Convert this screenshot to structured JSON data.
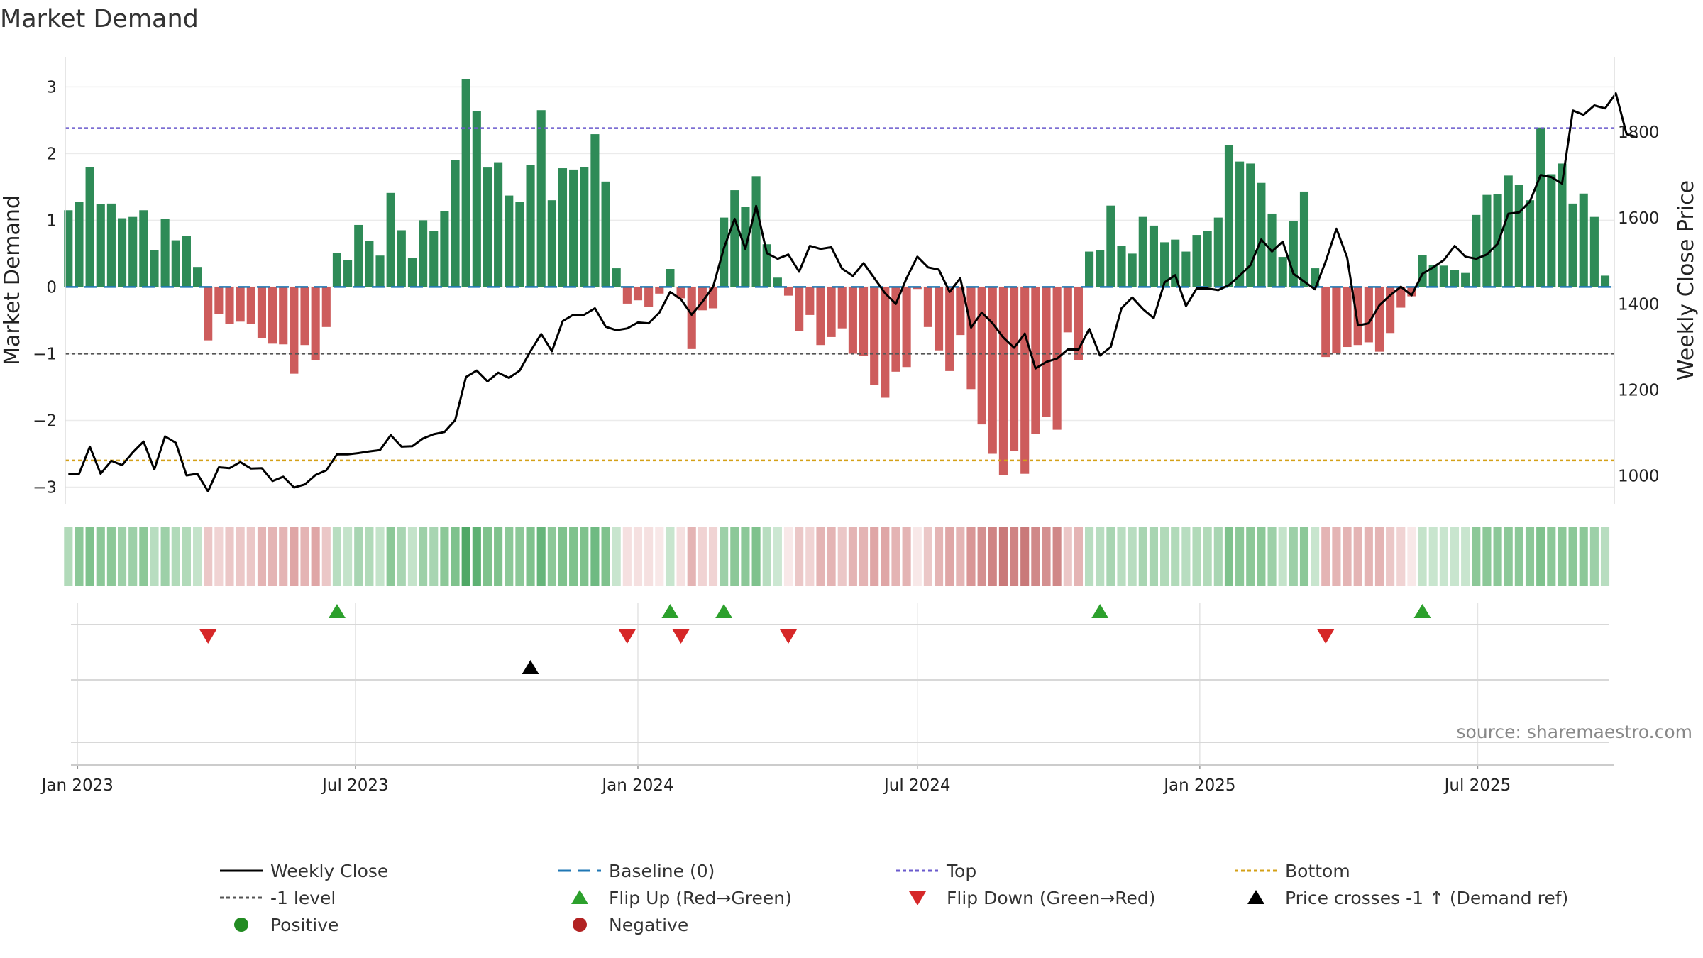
{
  "chart_data": {
    "type": "bar",
    "title": "Market Demand",
    "ylabel": "Market Demand",
    "y2label": "Weekly Close Price",
    "ylim": [
      -3.25,
      3.45
    ],
    "y2lim": [
      935,
      1975
    ],
    "yticks": [
      -3,
      -2,
      -1,
      0,
      1,
      2,
      3
    ],
    "y2ticks": [
      1000,
      1200,
      1400,
      1600,
      1800
    ],
    "xlim": [
      "2022-12-24",
      "2025-09-28"
    ],
    "xticks": [
      {
        "date": "2023-01-01",
        "label": "Jan 2023"
      },
      {
        "date": "2023-07-01",
        "label": "Jul 2023"
      },
      {
        "date": "2024-01-01",
        "label": "Jan 2024"
      },
      {
        "date": "2024-07-01",
        "label": "Jul 2024"
      },
      {
        "date": "2025-01-01",
        "label": "Jan 2025"
      },
      {
        "date": "2025-07-01",
        "label": "Jul 2025"
      }
    ],
    "start_date": "2022-12-26",
    "weeks": 144,
    "levels": {
      "top": 2.38,
      "bottom": -2.6,
      "minus_one": -1,
      "baseline": 0
    },
    "demand": [
      1.15,
      1.27,
      1.8,
      1.24,
      1.25,
      1.03,
      1.05,
      1.15,
      0.55,
      1.02,
      0.7,
      0.76,
      0.3,
      -0.8,
      -0.4,
      -0.55,
      -0.52,
      -0.55,
      -0.77,
      -0.85,
      -0.86,
      -1.3,
      -0.87,
      -1.1,
      -0.6,
      0.51,
      0.4,
      0.93,
      0.69,
      0.47,
      1.41,
      0.85,
      0.44,
      1.0,
      0.84,
      1.14,
      1.9,
      3.12,
      2.64,
      1.79,
      1.87,
      1.37,
      1.28,
      1.83,
      2.65,
      1.3,
      1.78,
      1.76,
      1.8,
      2.29,
      1.58,
      0.28,
      -0.25,
      -0.2,
      -0.3,
      -0.1,
      0.27,
      -0.17,
      -0.93,
      -0.35,
      -0.32,
      1.04,
      1.45,
      1.2,
      1.66,
      0.64,
      0.14,
      -0.13,
      -0.66,
      -0.42,
      -0.87,
      -0.75,
      -0.62,
      -1.0,
      -1.03,
      -1.47,
      -1.66,
      -1.27,
      -1.2,
      -0.03,
      -0.6,
      -0.95,
      -1.26,
      -0.72,
      -1.53,
      -2.06,
      -2.5,
      -2.82,
      -2.46,
      -2.8,
      -2.2,
      -1.95,
      -2.14,
      -0.68,
      -1.1,
      0.53,
      0.55,
      1.22,
      0.62,
      0.5,
      1.05,
      0.92,
      0.67,
      0.71,
      0.53,
      0.78,
      0.84,
      1.04,
      2.13,
      1.88,
      1.85,
      1.56,
      1.1,
      0.45,
      0.99,
      1.43,
      0.28,
      -1.05,
      -0.99,
      -0.9,
      -0.87,
      -0.83,
      -0.97,
      -0.69,
      -0.31,
      -0.14,
      0.48,
      0.33,
      0.32,
      0.25,
      0.21,
      1.08,
      1.38,
      1.39,
      1.67,
      1.53,
      1.3,
      2.39,
      1.69,
      1.85,
      1.25,
      1.4,
      1.05,
      0.17
    ],
    "close": [
      1005,
      1005,
      1068,
      1005,
      1035,
      1025,
      1055,
      1080,
      1015,
      1092,
      1077,
      1001,
      1005,
      964,
      1020,
      1018,
      1032,
      1017,
      1018,
      988,
      998,
      973,
      980,
      1002,
      1013,
      1050,
      1050,
      1053,
      1057,
      1060,
      1095,
      1068,
      1069,
      1087,
      1097,
      1102,
      1130,
      1230,
      1245,
      1220,
      1240,
      1228,
      1245,
      1290,
      1330,
      1290,
      1360,
      1375,
      1375,
      1390,
      1347,
      1339,
      1343,
      1357,
      1355,
      1380,
      1428,
      1411,
      1375,
      1405,
      1440,
      1530,
      1598,
      1528,
      1628,
      1518,
      1505,
      1515,
      1475,
      1535,
      1528,
      1532,
      1482,
      1465,
      1495,
      1460,
      1425,
      1400,
      1460,
      1510,
      1485,
      1480,
      1428,
      1460,
      1345,
      1380,
      1355,
      1322,
      1298,
      1331,
      1250,
      1265,
      1273,
      1294,
      1294,
      1342,
      1280,
      1300,
      1390,
      1415,
      1388,
      1367,
      1450,
      1467,
      1395,
      1436,
      1436,
      1432,
      1444,
      1466,
      1490,
      1550,
      1522,
      1545,
      1470,
      1452,
      1434,
      1499,
      1575,
      1508,
      1350,
      1355,
      1397,
      1420,
      1440,
      1420,
      1470,
      1485,
      1502,
      1535,
      1510,
      1505,
      1515,
      1540,
      1610,
      1613,
      1638,
      1700,
      1695,
      1680,
      1850,
      1840,
      1862,
      1855,
      1890,
      1795,
      1788
    ],
    "demand_strip_colors": [
      "#b1dab9",
      "#8cc898",
      "#7fc28d",
      "#8cc898",
      "#8cc898",
      "#9dd0a8",
      "#9dd0a8",
      "#8cc898",
      "#b8ddc0",
      "#9dd0a8",
      "#b1dab9",
      "#b1dab9",
      "#c4e3ca",
      "#ebc7c7",
      "#f0d3d3",
      "#ebc7c7",
      "#ebc7c7",
      "#ebc7c7",
      "#e4b4b4",
      "#e4b4b4",
      "#e4b4b4",
      "#dfa6a6",
      "#e4b4b4",
      "#dfa6a6",
      "#ebc7c7",
      "#b8ddc0",
      "#c4e3ca",
      "#a8d5b2",
      "#b1dab9",
      "#c4e3ca",
      "#8cc898",
      "#a8d5b2",
      "#c4e3ca",
      "#9dd0a8",
      "#a8d5b2",
      "#8cc898",
      "#7fc28d",
      "#4fa866",
      "#5eb173",
      "#7fc28d",
      "#7fc28d",
      "#8cc898",
      "#8cc898",
      "#7fc28d",
      "#66b57a",
      "#8cc898",
      "#7fc28d",
      "#7fc28d",
      "#7fc28d",
      "#6fba82",
      "#7fc28d",
      "#c8e5ce",
      "#f5e0e0",
      "#f5e0e0",
      "#f5e0e0",
      "#f8e8e8",
      "#c8e5ce",
      "#f5e0e0",
      "#e4b4b4",
      "#f0d3d3",
      "#f0d3d3",
      "#9dd0a8",
      "#8cc898",
      "#8cc898",
      "#7fc28d",
      "#b8ddc0",
      "#cce7d2",
      "#f8e8e8",
      "#ebc7c7",
      "#f0d3d3",
      "#e4b4b4",
      "#e4b4b4",
      "#ebc7c7",
      "#e4b4b4",
      "#e4b4b4",
      "#dfa6a6",
      "#dfa6a6",
      "#e4b4b4",
      "#e4b4b4",
      "#f8e8e8",
      "#ebc7c7",
      "#e4b4b4",
      "#dfa6a6",
      "#e4b4b4",
      "#d99696",
      "#d49090",
      "#cf8484",
      "#c97979",
      "#cf8484",
      "#c97979",
      "#d08888",
      "#d49090",
      "#d08888",
      "#ebc7c7",
      "#e4b4b4",
      "#b8ddc0",
      "#b8ddc0",
      "#a8d5b2",
      "#b8ddc0",
      "#b8ddc0",
      "#a8d5b2",
      "#a8d5b2",
      "#b1dab9",
      "#b1dab9",
      "#b8ddc0",
      "#b1dab9",
      "#b1dab9",
      "#a8d5b2",
      "#7fc28d",
      "#8cc898",
      "#8cc898",
      "#8cc898",
      "#9dd0a8",
      "#c4e3ca",
      "#9dd0a8",
      "#8cc898",
      "#c8e5ce",
      "#e4b4b4",
      "#e4b4b4",
      "#e4b4b4",
      "#e4b4b4",
      "#e4b4b4",
      "#e4b4b4",
      "#ebc7c7",
      "#f0d3d3",
      "#f8e8e8",
      "#c4e3ca",
      "#c8e5ce",
      "#c8e5ce",
      "#c8e5ce",
      "#c8e5ce",
      "#8cc898",
      "#8cc898",
      "#8cc898",
      "#8cc898",
      "#8cc898",
      "#8cc898",
      "#7fc28d",
      "#8cc898",
      "#8cc898",
      "#8cc898",
      "#8cc898",
      "#9dd0a8",
      "#b8ddc0"
    ],
    "flip_up_weeks": [
      25,
      56,
      61,
      96,
      126
    ],
    "flip_down_weeks": [
      13,
      52,
      57,
      67,
      117
    ],
    "price_cross_weeks": [
      43
    ],
    "colors": {
      "positive_bar": "#2e8b57",
      "negative_bar": "#cd5c5c",
      "close_line": "#000000",
      "baseline": "#1f77b4",
      "top": "#6a5acd",
      "bottom": "#d4a017",
      "minus_one": "#555555",
      "flip_up": "#2ca02c",
      "flip_down": "#d62728",
      "price_cross": "#000000",
      "positive_dot": "#228b22",
      "negative_dot": "#b22222"
    },
    "legend": [
      {
        "label": "Weekly Close",
        "kind": "line",
        "color": "#000000",
        "dash": ""
      },
      {
        "label": "Baseline (0)",
        "kind": "line",
        "color": "#1f77b4",
        "dash": "18,9"
      },
      {
        "label": "Top",
        "kind": "line",
        "color": "#6a5acd",
        "dash": "5,4"
      },
      {
        "label": "Bottom",
        "kind": "line",
        "color": "#d4a017",
        "dash": "5,4"
      },
      {
        "label": "-1 level",
        "kind": "line",
        "color": "#555555",
        "dash": "5,4"
      },
      {
        "label": "Flip Up (Red→Green)",
        "kind": "tri-up",
        "color": "#2ca02c"
      },
      {
        "label": "Flip Down (Green→Red)",
        "kind": "tri-down",
        "color": "#d62728"
      },
      {
        "label": "Price crosses -1 ↑ (Demand ref)",
        "kind": "tri-up",
        "color": "#000000"
      },
      {
        "label": "Positive",
        "kind": "dot",
        "color": "#228b22"
      },
      {
        "label": "Negative",
        "kind": "dot",
        "color": "#b22222"
      }
    ],
    "legend_placement": "bottom",
    "grid": true,
    "source": "source: sharemaestro.com"
  }
}
